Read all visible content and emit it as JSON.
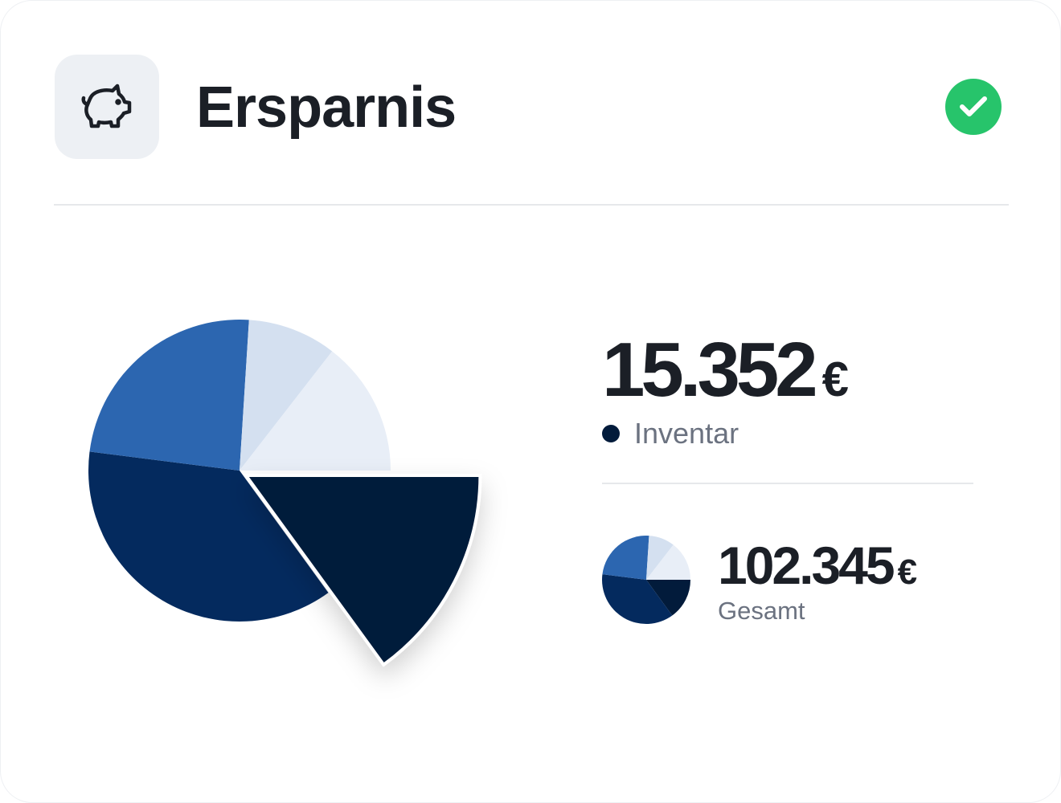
{
  "header": {
    "title": "Ersparnis",
    "icon": "piggy-bank-icon",
    "status_icon": "check-circle-icon",
    "status_color": "#27c46b"
  },
  "highlight": {
    "amount": "15.352",
    "currency": "€",
    "label": "Inventar",
    "color": "#021b3b"
  },
  "total": {
    "amount": "102.345",
    "currency": "€",
    "label": "Gesamt"
  },
  "chart_data": {
    "type": "pie",
    "exploded_slice": 0,
    "slices": [
      {
        "value": 15,
        "color": "#021b3b"
      },
      {
        "value": 37,
        "color": "#042a5e"
      },
      {
        "value": 24,
        "color": "#2c66b0"
      },
      {
        "value": 9.5,
        "color": "#d4e0f0"
      },
      {
        "value": 14.5,
        "color": "#e8eef7"
      }
    ]
  }
}
